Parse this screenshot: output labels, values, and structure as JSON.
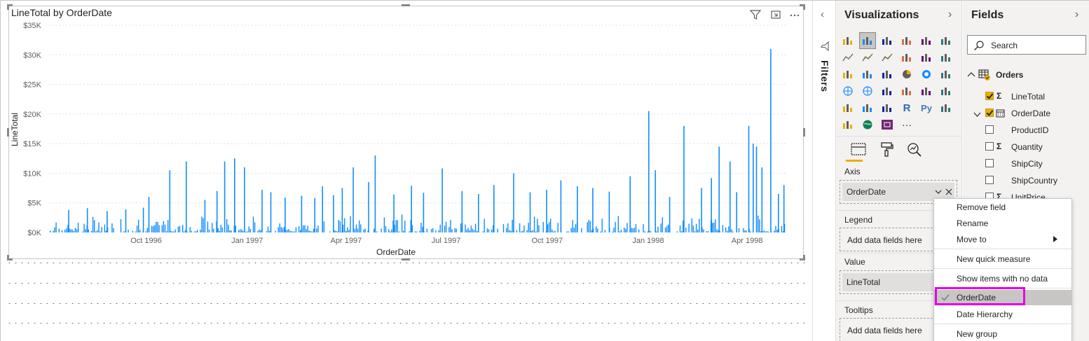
{
  "canvas": {
    "visual": {
      "title": "LineTotal by OrderDate",
      "header_icons": [
        "filter-icon",
        "focus-mode-icon",
        "more-options-icon"
      ]
    }
  },
  "chart_data": {
    "type": "bar",
    "title": "LineTotal by OrderDate",
    "xlabel": "OrderDate",
    "ylabel": "LineTotal",
    "ylim": [
      0,
      35000
    ],
    "y_ticks": [
      "$0K",
      "$5K",
      "$10K",
      "$15K",
      "$20K",
      "$25K",
      "$30K",
      "$35K"
    ],
    "x_ticks": [
      "Oct 1996",
      "Jan 1997",
      "Apr 1997",
      "Jul 1997",
      "Oct 1997",
      "Jan 1998",
      "Apr 1998"
    ],
    "x_range": [
      "1996-07-04",
      "1998-05-06"
    ],
    "grid": true,
    "bar_color": "#118dff",
    "series": [
      {
        "dates": [
          "1996-07-22",
          "1996-08-08",
          "1996-08-26",
          "1996-09-12",
          "1996-09-28",
          "1996-10-03",
          "1996-10-22",
          "1996-11-06",
          "1996-11-23",
          "1996-12-04",
          "1996-12-11",
          "1996-12-20",
          "1996-12-29",
          "1997-01-14",
          "1997-01-22",
          "1997-02-04",
          "1997-02-19",
          "1997-03-03",
          "1997-03-10",
          "1997-03-20",
          "1997-03-28",
          "1997-04-07",
          "1997-04-21",
          "1997-04-27",
          "1997-05-14",
          "1997-05-30",
          "1997-06-10",
          "1997-06-27",
          "1997-07-15",
          "1997-07-30",
          "1997-08-13",
          "1997-08-31",
          "1997-09-15",
          "1997-09-30",
          "1997-10-13",
          "1997-10-28",
          "1997-11-11",
          "1997-11-26",
          "1997-12-15",
          "1998-01-01",
          "1998-01-07",
          "1998-01-20",
          "1998-02-02",
          "1998-02-18",
          "1998-02-27",
          "1998-03-06",
          "1998-03-16",
          "1998-03-22",
          "1998-04-02",
          "1998-04-06",
          "1998-04-09",
          "1998-04-14",
          "1998-04-22",
          "1998-04-29",
          "1998-05-04"
        ],
        "values": [
          3800,
          4100,
          3600,
          3900,
          4200,
          6000,
          10500,
          12000,
          5500,
          7000,
          12000,
          12500,
          11000,
          7200,
          6800,
          5900,
          6200,
          5800,
          7800,
          6300,
          7500,
          11000,
          8500,
          13000,
          6400,
          7900,
          6700,
          10800,
          7000,
          6500,
          8000,
          10000,
          6800,
          7200,
          8800,
          7800,
          7500,
          6900,
          9500,
          20500,
          10500,
          6000,
          18000,
          7500,
          9200,
          14500,
          12000,
          6800,
          18000,
          15000,
          14500,
          11000,
          31000,
          6500,
          8000
        ]
      }
    ],
    "baseline_note": "dense daily bars mostly between 0 and 3000"
  },
  "filters": {
    "label": "Filters"
  },
  "visualizations": {
    "title": "Visualizations",
    "wells": {
      "axis": {
        "label": "Axis",
        "field": "OrderDate"
      },
      "legend": {
        "label": "Legend",
        "placeholder": "Add data fields here"
      },
      "value": {
        "label": "Value",
        "field": "LineTotal"
      },
      "tooltips": {
        "label": "Tooltips",
        "placeholder": "Add data fields here"
      }
    },
    "python_label": "Py",
    "r_label": "R",
    "more_label": "···"
  },
  "fields": {
    "title": "Fields",
    "search_placeholder": "Search",
    "table": "Orders",
    "items": [
      {
        "name": "LineTotal",
        "checked": true,
        "sigma": true
      },
      {
        "name": "OrderDate",
        "checked": true,
        "date": true
      },
      {
        "name": "ProductID",
        "checked": false
      },
      {
        "name": "Quantity",
        "checked": false,
        "sigma": true
      },
      {
        "name": "ShipCity",
        "checked": false
      },
      {
        "name": "ShipCountry",
        "checked": false
      },
      {
        "name": "UnitPrice",
        "checked": false,
        "sigma": true
      }
    ]
  },
  "context_menu": {
    "items": [
      "Remove field",
      "Rename",
      "Move to",
      "New quick measure",
      "Show items with no data",
      "OrderDate",
      "Date Hierarchy",
      "New group"
    ]
  },
  "colors": {
    "accent": "#e8b000",
    "highlight": "#e600e6",
    "bar": "#118dff"
  }
}
